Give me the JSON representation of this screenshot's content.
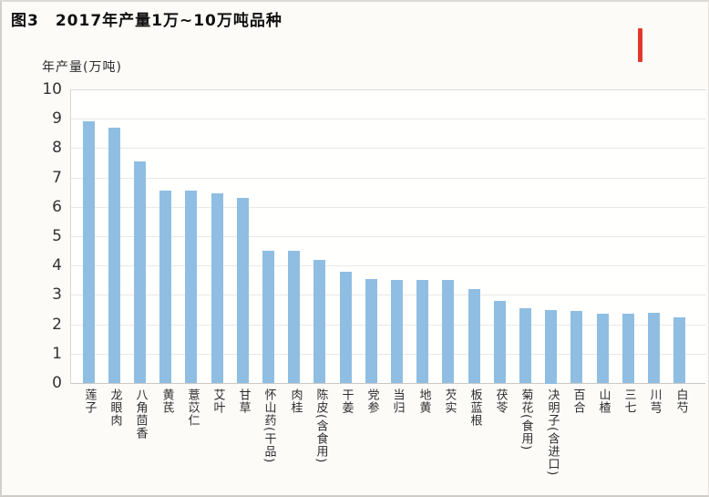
{
  "header": {
    "figure_label": "图3",
    "title": "2017年产量1万~10万吨品种"
  },
  "chart_data": {
    "type": "bar",
    "title": "2017年产量1万~10万吨品种",
    "xlabel": "",
    "ylabel": "年产量(万吨)",
    "ylim": [
      0,
      10
    ],
    "yticks": [
      10,
      9,
      8,
      7,
      6,
      5,
      4,
      3,
      2,
      1,
      0
    ],
    "grid": true,
    "legend": "none",
    "bar_color": "#8fbee2",
    "categories": [
      "莲子",
      "龙眼肉",
      "八角茴香",
      "黄芪",
      "薏苡仁",
      "艾叶",
      "甘草",
      "怀山药(干品)",
      "肉桂",
      "陈皮(含食用)",
      "干姜",
      "党参",
      "当归",
      "地黄",
      "芡实",
      "板蓝根",
      "茯苓",
      "菊花(食用)",
      "决明子(含进口)",
      "百合",
      "山楂",
      "三七",
      "川芎",
      "白芍"
    ],
    "values": [
      8.9,
      8.7,
      7.55,
      6.55,
      6.55,
      6.45,
      6.3,
      4.5,
      4.5,
      4.2,
      3.8,
      3.55,
      3.5,
      3.5,
      3.5,
      3.2,
      2.8,
      2.55,
      2.5,
      2.45,
      2.35,
      2.35,
      2.4,
      2.25
    ]
  },
  "annotation_mark": {
    "color": "#e2382b"
  },
  "colors": {
    "background": "#fcfbf8",
    "plot_background": "#fffffe",
    "gridline": "#e9e8e5",
    "text": "#2d2d2d"
  }
}
